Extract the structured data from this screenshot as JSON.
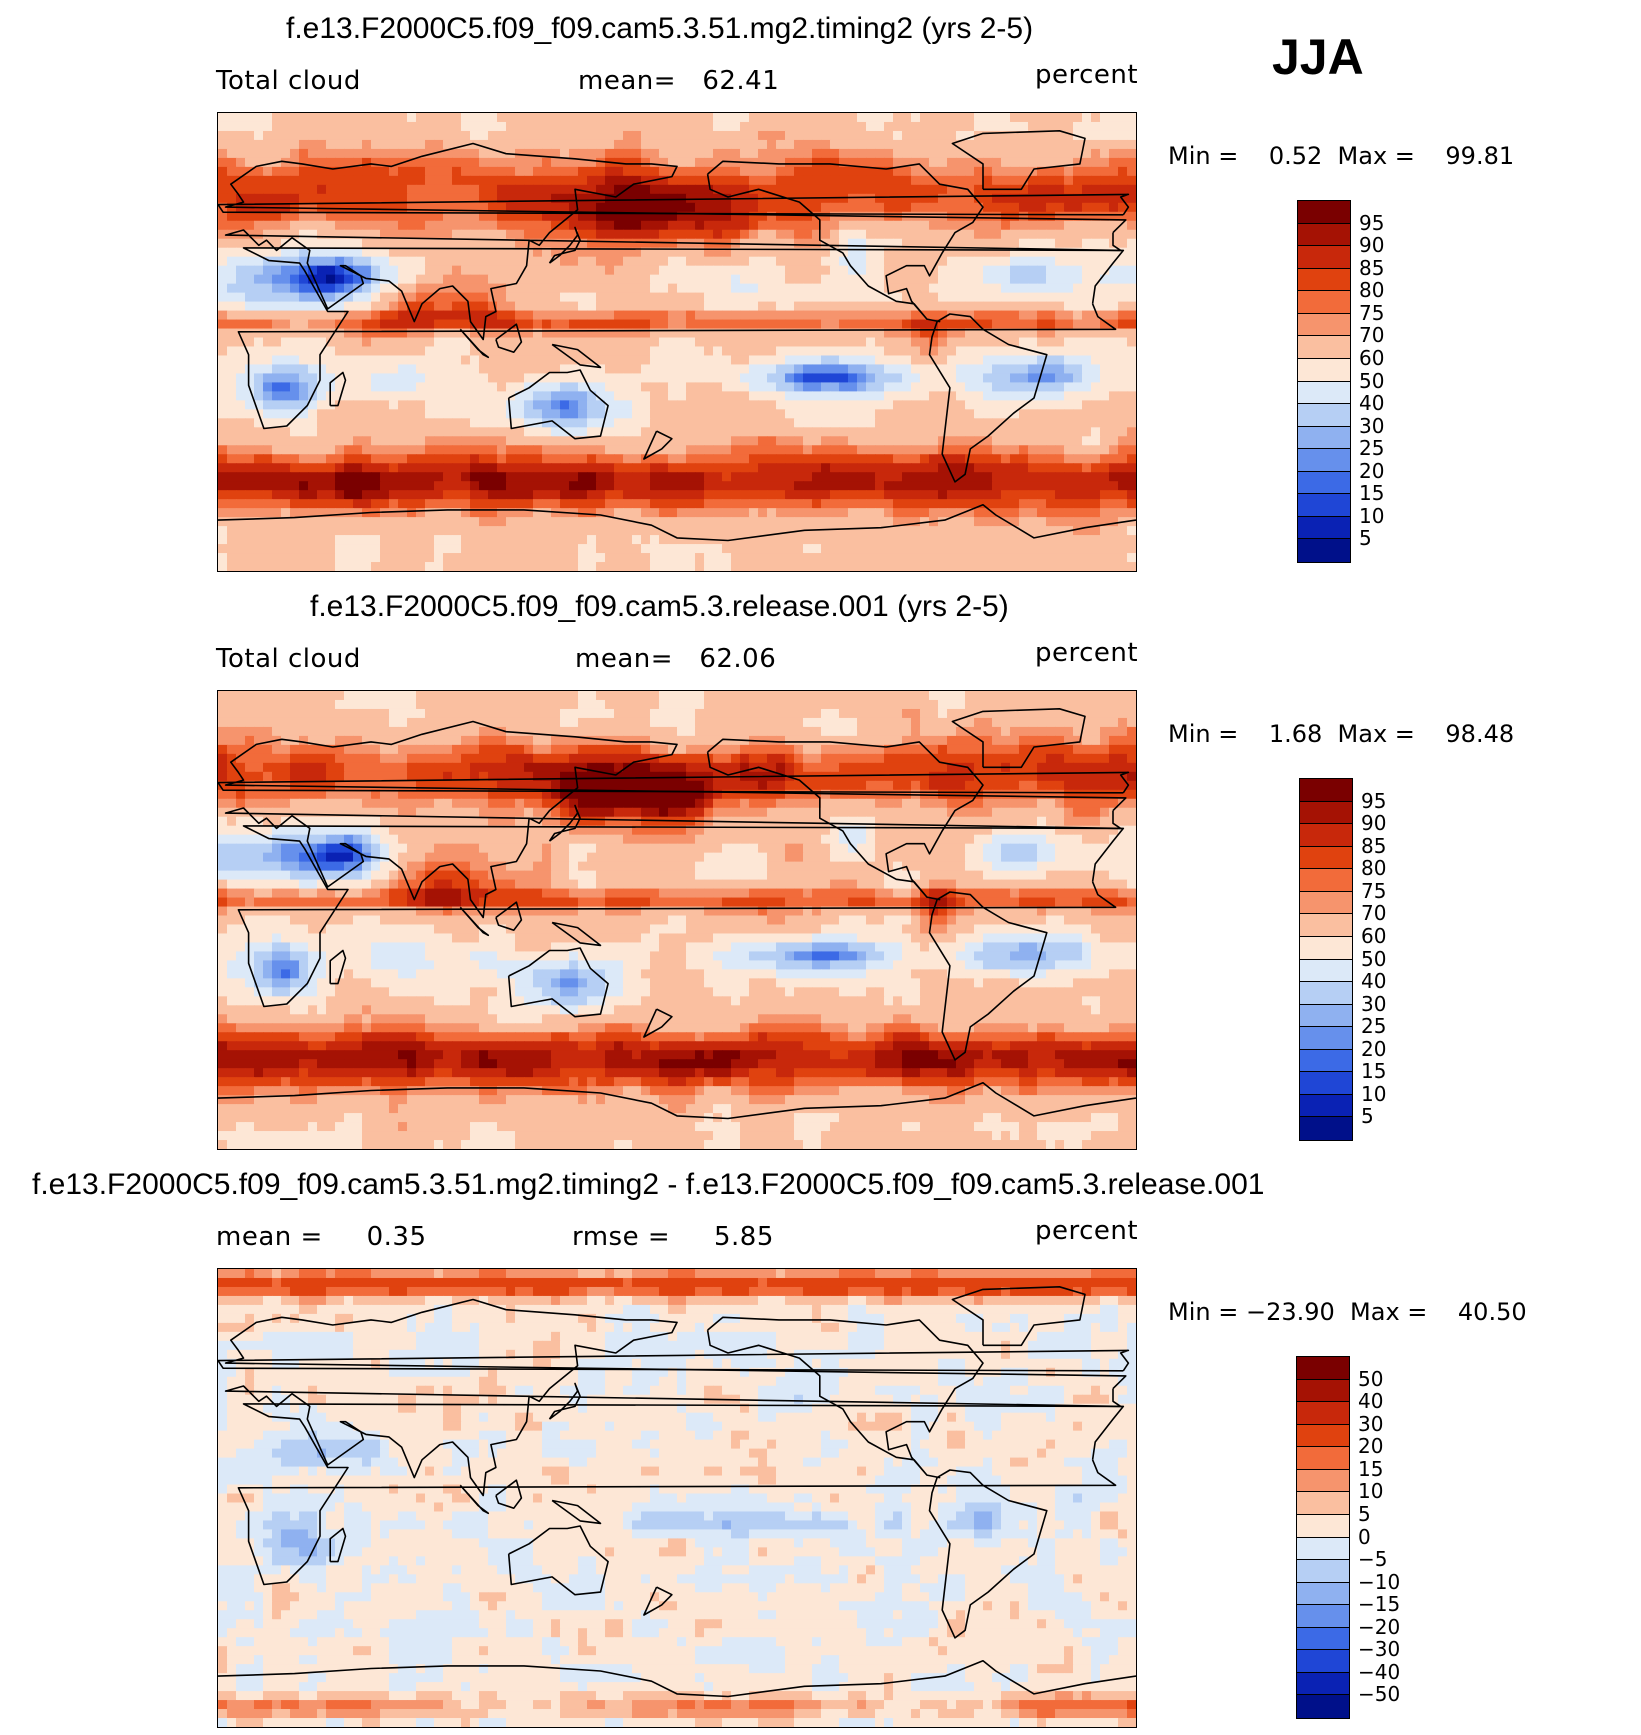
{
  "season": "JJA",
  "panels": [
    {
      "title": "f.e13.F2000C5.f09_f09.cam5.3.51.mg2.timing2 (yrs 2-5)",
      "left_label": "Total cloud",
      "center_label": "mean=   62.41",
      "units": "percent",
      "minmax": "Min =    0.52  Max =    99.81",
      "colorbar_labels": [
        "95",
        "90",
        "85",
        "80",
        "75",
        "70",
        "60",
        "50",
        "40",
        "30",
        "25",
        "20",
        "15",
        "10",
        "5"
      ],
      "kind": "abs",
      "variant": 1
    },
    {
      "title": "f.e13.F2000C5.f09_f09.cam5.3.release.001 (yrs 2-5)",
      "left_label": "Total cloud",
      "center_label": "mean=   62.06",
      "units": "percent",
      "minmax": "Min =    1.68  Max =    98.48",
      "colorbar_labels": [
        "95",
        "90",
        "85",
        "80",
        "75",
        "70",
        "60",
        "50",
        "40",
        "30",
        "25",
        "20",
        "15",
        "10",
        "5"
      ],
      "kind": "abs",
      "variant": 2
    },
    {
      "title": "f.e13.F2000C5.f09_f09.cam5.3.51.mg2.timing2 - f.e13.F2000C5.f09_f09.cam5.3.release.001",
      "left_label": "mean =     0.35",
      "center_label": "rmse =     5.85",
      "units": "percent",
      "minmax": "Min = −23.90  Max =    40.50",
      "colorbar_labels": [
        "50",
        "40",
        "30",
        "20",
        "15",
        "10",
        "5",
        "0",
        "−5",
        "−10",
        "−15",
        "−20",
        "−30",
        "−40",
        "−50"
      ],
      "kind": "diff",
      "variant": 3
    }
  ],
  "colors": {
    "palette": [
      "#7a0000",
      "#a51204",
      "#c8280b",
      "#e0420f",
      "#f26b3a",
      "#f6946d",
      "#fabfa0",
      "#fde7d6",
      "#dce9f8",
      "#b6cff4",
      "#8fb1f0",
      "#6690ec",
      "#3c6ae6",
      "#1f46d6",
      "#0a22b4",
      "#00108a"
    ]
  }
}
